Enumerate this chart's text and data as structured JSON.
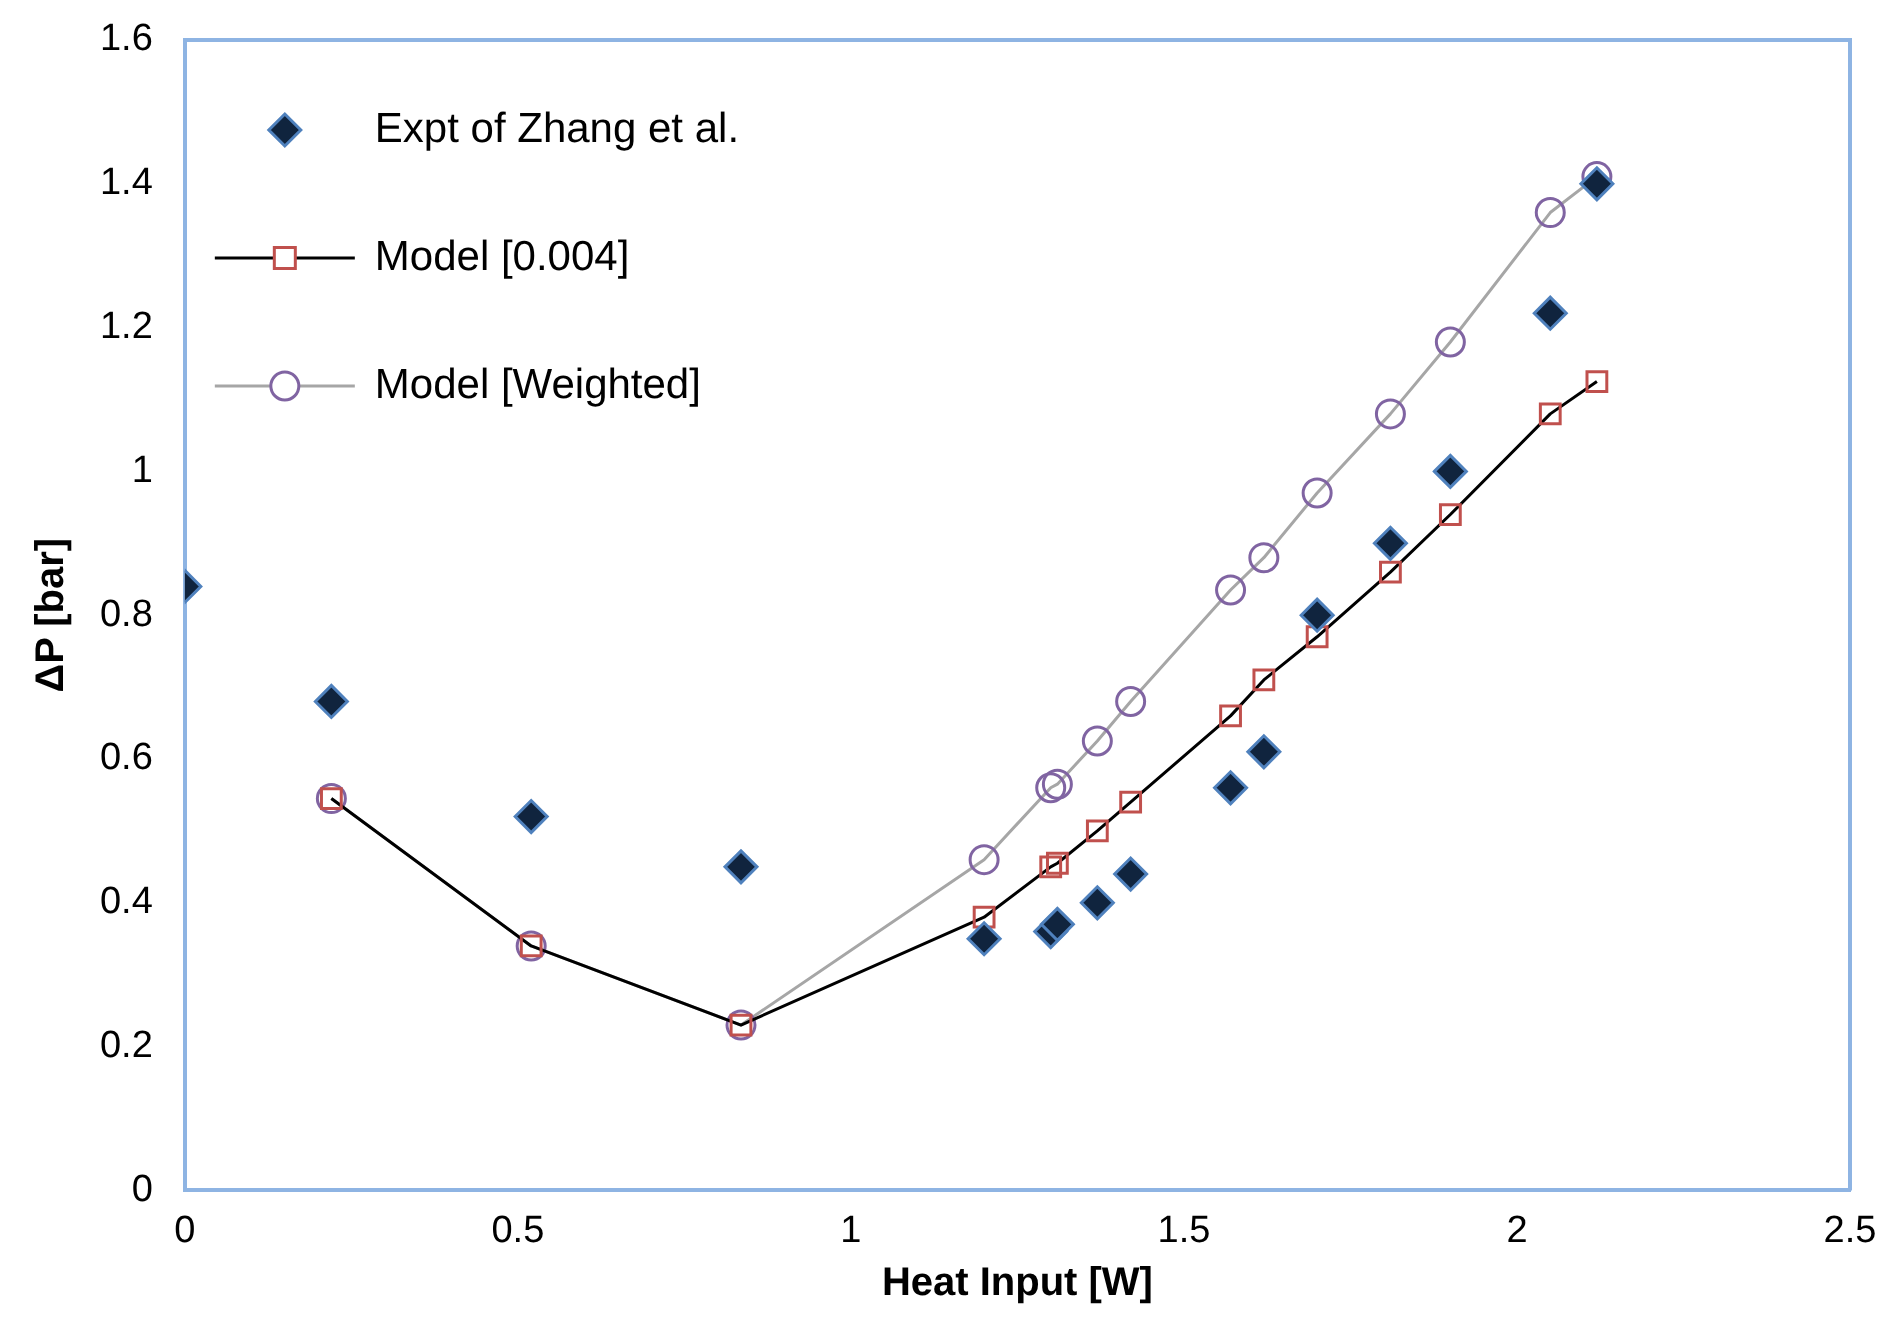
{
  "chart_data": {
    "type": "scatter",
    "xlabel": "Heat Input [W]",
    "ylabel": "ΔP [bar]",
    "xlim": [
      0,
      2.5
    ],
    "xticks": [
      0,
      0.5,
      1,
      1.5,
      2,
      2.5
    ],
    "ylim": [
      0,
      1.6
    ],
    "yticks": [
      0,
      0.2,
      0.4,
      0.6,
      0.8,
      1,
      1.2,
      1.4,
      1.6
    ],
    "grid": false,
    "legend": "top left",
    "series": [
      {
        "name": "Expt of Zhang et al.",
        "type": "scatter",
        "marker": "diamond",
        "color": "#10243e",
        "x": [
          0,
          0.22,
          0.52,
          0.835,
          1.2,
          1.3,
          1.31,
          1.37,
          1.42,
          1.57,
          1.62,
          1.7,
          1.81,
          1.9,
          2.05,
          2.12
        ],
        "values": [
          0.84,
          0.68,
          0.52,
          0.45,
          0.35,
          0.36,
          0.37,
          0.4,
          0.44,
          0.56,
          0.61,
          0.8,
          0.9,
          1.0,
          1.22,
          1.4
        ]
      },
      {
        "name": "Model [0.004]",
        "type": "line",
        "marker": "square",
        "color": "#c0504d",
        "x": [
          0.22,
          0.52,
          0.835,
          1.2,
          1.3,
          1.31,
          1.37,
          1.42,
          1.57,
          1.62,
          1.7,
          1.81,
          1.9,
          2.05,
          2.12
        ],
        "values": [
          0.545,
          0.34,
          0.23,
          0.38,
          0.45,
          0.455,
          0.5,
          0.54,
          0.66,
          0.71,
          0.77,
          0.86,
          0.94,
          1.08,
          1.125
        ]
      },
      {
        "name": "Model [Weighted]",
        "type": "line",
        "marker": "circle",
        "color": "#8064a2",
        "x": [
          0.22,
          0.52,
          0.835,
          1.2,
          1.3,
          1.31,
          1.37,
          1.42,
          1.57,
          1.62,
          1.7,
          1.81,
          1.9,
          2.05,
          2.12
        ],
        "values": [
          0.545,
          0.34,
          0.23,
          0.46,
          0.56,
          0.565,
          0.625,
          0.68,
          0.835,
          0.88,
          0.97,
          1.08,
          1.18,
          1.36,
          1.41
        ]
      }
    ]
  }
}
